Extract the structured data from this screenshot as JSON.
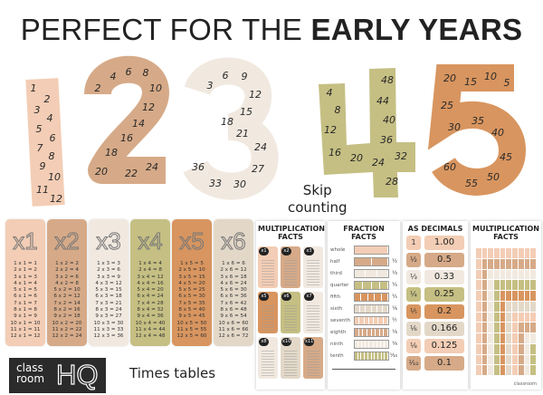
{
  "title": {
    "regular": "PERFECT FOR THE ",
    "bold": "EARLY YEARS"
  },
  "colors": {
    "peach": "#f3cdb5",
    "tan": "#d6aa88",
    "cream": "#f1e9e0",
    "olive": "#c5bf83",
    "orange": "#d8955f",
    "beige": "#e3d8c8"
  },
  "skip_counting": {
    "digits": [
      "1",
      "2",
      "3",
      "4",
      "5"
    ],
    "ones": [
      "1",
      "2",
      "3",
      "4",
      "5",
      "6",
      "7",
      "8",
      "9",
      "10",
      "11",
      "12"
    ],
    "twos": [
      "2",
      "4",
      "6",
      "8",
      "10",
      "12",
      "14",
      "16",
      "18",
      "20",
      "22",
      "24"
    ],
    "threes": [
      "3",
      "6",
      "9",
      "12",
      "15",
      "18",
      "21",
      "24",
      "27",
      "30",
      "33",
      "36"
    ],
    "fours": [
      "4",
      "8",
      "12",
      "16",
      "20",
      "24",
      "28",
      "32",
      "36",
      "40",
      "44",
      "48"
    ],
    "fives": [
      "20",
      "15",
      "10",
      "5",
      "25",
      "30",
      "35",
      "40",
      "45",
      "50",
      "55",
      "60"
    ],
    "caption_line1": "Skip",
    "caption_line2": "counting"
  },
  "times_tables": {
    "caption": "Times tables",
    "cards": [
      {
        "label": "x1",
        "n": 1
      },
      {
        "label": "x2",
        "n": 2
      },
      {
        "label": "x3",
        "n": 3
      },
      {
        "label": "x4",
        "n": 4
      },
      {
        "label": "x5",
        "n": 5
      },
      {
        "label": "x6",
        "n": 6
      }
    ]
  },
  "posters": {
    "multiplication": {
      "title": "MULTIPLICATION FACTS",
      "cards": [
        "x1",
        "x2",
        "x3",
        "x5",
        "x6",
        "x7",
        "x8",
        "x10",
        "x11"
      ]
    },
    "fractions": {
      "title": "FRACTION FACTS",
      "rows": [
        "whole",
        "half",
        "third",
        "quarter",
        "fifth",
        "sixth",
        "seventh",
        "eighth",
        "ninth",
        "tenth"
      ],
      "fracs": [
        "",
        "½",
        "⅓",
        "¼",
        "⅕",
        "⅙",
        "⅐",
        "⅛",
        "⅑",
        "⅒"
      ]
    },
    "decimals": {
      "title": "AS DECIMALS",
      "fracs": [
        "1",
        "½",
        "⅓",
        "¼",
        "⅕",
        "⅙",
        "⅛",
        "⅒"
      ],
      "values": [
        "1.00",
        "0.5",
        "0.33",
        "0.25",
        "0.2",
        "0.166",
        "0.125",
        "0.1"
      ]
    },
    "grid": {
      "title": "MULTIPLICATION FACTS",
      "footer": "classroom"
    }
  },
  "logo": {
    "line1": "class",
    "line2": "room",
    "hq": "HQ"
  }
}
